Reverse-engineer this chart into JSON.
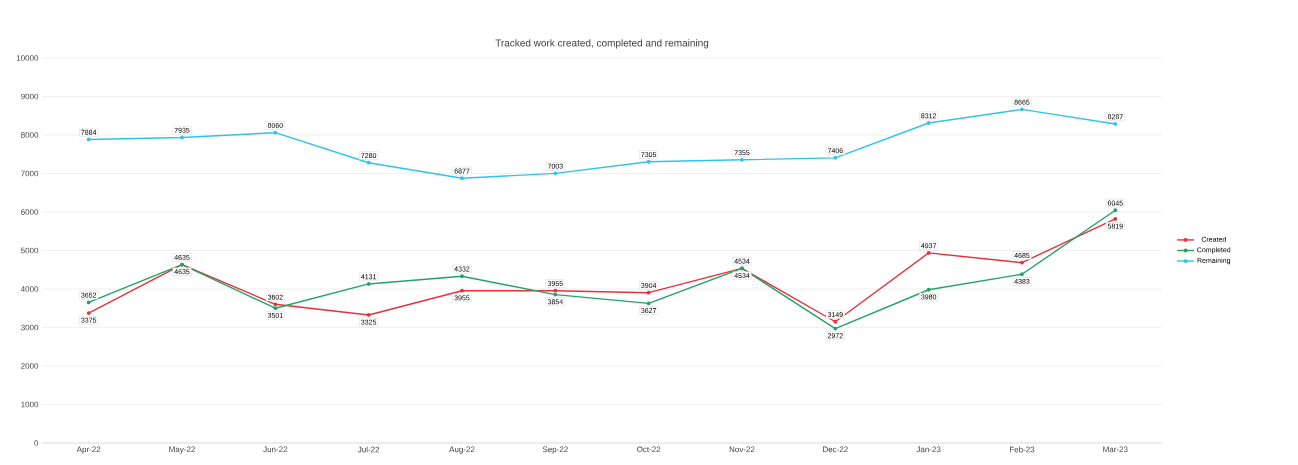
{
  "chart_data": {
    "type": "line",
    "title": "Tracked work created, completed and remaining",
    "categories": [
      "Apr-22",
      "May-22",
      "Jun-22",
      "Jul-22",
      "Aug-22",
      "Sep-22",
      "Oct-22",
      "Nov-22",
      "Dec-22",
      "Jan-23",
      "Feb-23",
      "Mar-23"
    ],
    "series": [
      {
        "name": "Created",
        "color": "#e8303a",
        "values": [
          3375,
          4635,
          3602,
          3325,
          3955,
          3955,
          3904,
          4534,
          3149,
          4937,
          4685,
          5819
        ]
      },
      {
        "name": "Completed",
        "color": "#21a366",
        "values": [
          3652,
          4635,
          3501,
          4131,
          4332,
          3854,
          3627,
          4534,
          2972,
          3980,
          4383,
          6045
        ]
      },
      {
        "name": "Remaining",
        "color": "#2ec4e8",
        "values": [
          7884,
          7935,
          8060,
          7280,
          6877,
          7003,
          7305,
          7355,
          7406,
          8312,
          8665,
          8287
        ]
      }
    ],
    "ylim": [
      0,
      10000
    ],
    "yticks": [
      0,
      1000,
      2000,
      3000,
      4000,
      5000,
      6000,
      7000,
      8000,
      9000,
      10000
    ],
    "grid": "y",
    "legend": "right",
    "marker": "circle",
    "line_style": "solid",
    "data_labels": true
  }
}
